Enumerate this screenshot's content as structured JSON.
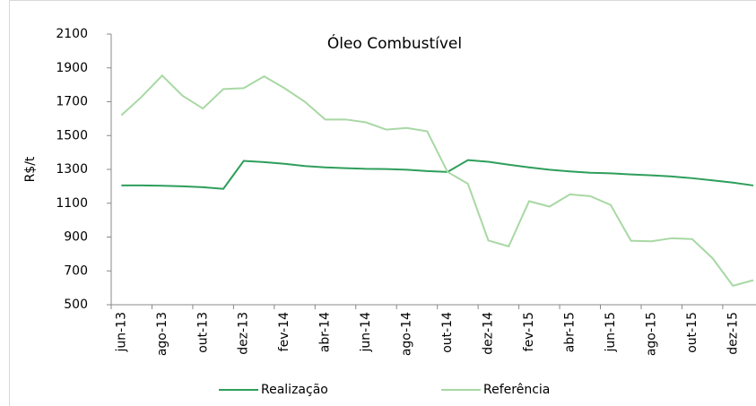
{
  "chart_data": {
    "type": "line",
    "title": "Óleo Combustível",
    "ylabel": "R$/t",
    "categories": [
      "jun-13",
      null,
      "ago-13",
      null,
      "out-13",
      null,
      "dez-13",
      null,
      "fev-14",
      null,
      "abr-14",
      null,
      "jun-14",
      null,
      "ago-14",
      null,
      "out-14",
      null,
      "dez-14",
      null,
      "fev-15",
      null,
      "abr-15",
      null,
      "jun-15",
      null,
      "ago-15",
      null,
      "out-15",
      null,
      "dez-15",
      null
    ],
    "series": [
      {
        "name": "Realização",
        "color": "#2e9e5b",
        "values": [
          1205,
          1205,
          1203,
          1200,
          1195,
          1185,
          1350,
          1343,
          1333,
          1320,
          1312,
          1307,
          1303,
          1302,
          1298,
          1290,
          1285,
          1355,
          1345,
          1328,
          1312,
          1298,
          1288,
          1280,
          1277,
          1270,
          1265,
          1258,
          1248,
          1235,
          1222,
          1205
        ]
      },
      {
        "name": "Referência",
        "color": "#a8d8a4",
        "values": [
          1620,
          1730,
          1855,
          1735,
          1660,
          1775,
          1780,
          1850,
          1780,
          1700,
          1595,
          1595,
          1578,
          1535,
          1545,
          1525,
          1285,
          1215,
          880,
          845,
          1112,
          1080,
          1152,
          1142,
          1090,
          878,
          875,
          893,
          888,
          775,
          612,
          645
        ]
      }
    ],
    "ylim": [
      500,
      2100
    ],
    "yticks": [
      500,
      700,
      900,
      1100,
      1300,
      1500,
      1700,
      1900,
      2100
    ],
    "legend": "bottom"
  }
}
